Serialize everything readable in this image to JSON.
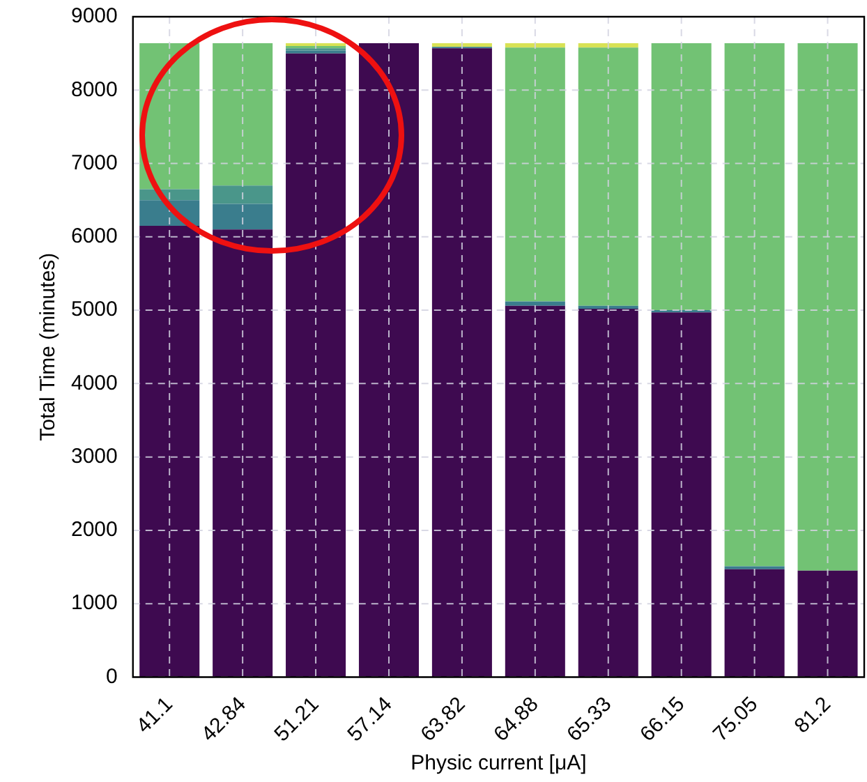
{
  "chart_data": {
    "type": "bar",
    "stacked": true,
    "xlabel": "Physic current [μA]",
    "ylabel": "Total Time (minutes)",
    "categories": [
      "41.1",
      "42.84",
      "51.21",
      "57.14",
      "63.82",
      "64.88",
      "65.33",
      "66.15",
      "75.05",
      "81.2"
    ],
    "series": [
      {
        "color": "#3e0a50",
        "values": [
          6150,
          6100,
          8500,
          8640,
          8570,
          5060,
          5020,
          4970,
          1470,
          1450
        ]
      },
      {
        "color": "#3a7d8d",
        "values": [
          350,
          350,
          40,
          0,
          20,
          60,
          40,
          30,
          40,
          0
        ]
      },
      {
        "color": "#4a968a",
        "values": [
          150,
          250,
          30,
          0,
          0,
          0,
          0,
          0,
          0,
          0
        ]
      },
      {
        "color": "#72c274",
        "values": [
          1990,
          1940,
          30,
          0,
          0,
          3460,
          3520,
          3640,
          7130,
          7190
        ]
      },
      {
        "color": "#d8e255",
        "values": [
          0,
          0,
          40,
          0,
          50,
          60,
          60,
          0,
          0,
          0
        ]
      }
    ],
    "ylim": [
      0,
      9000
    ],
    "yticks": [
      0,
      1000,
      2000,
      3000,
      4000,
      5000,
      6000,
      7000,
      8000,
      9000
    ],
    "grid": true,
    "legend": false
  }
}
